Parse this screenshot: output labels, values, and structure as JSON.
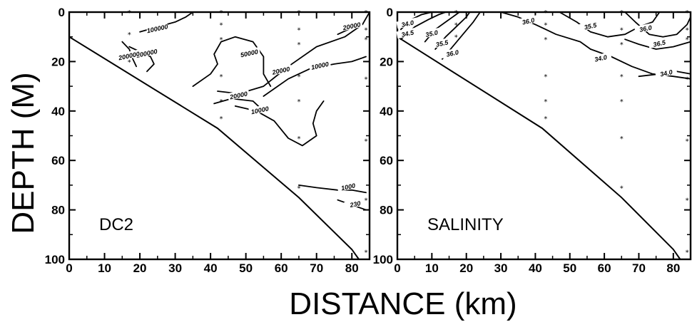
{
  "chart_data": [
    {
      "type": "contour",
      "panel_label": "DC2",
      "xlim": [
        0,
        85
      ],
      "ylim": [
        0,
        100
      ],
      "y_inverted": true,
      "x_ticks": [
        "0",
        "10",
        "20",
        "30",
        "40",
        "50",
        "60",
        "70",
        "80"
      ],
      "y_ticks": [
        "0",
        "20",
        "40",
        "60",
        "80",
        "100"
      ],
      "bottom_profile": [
        [
          0,
          10
        ],
        [
          42,
          47
        ],
        [
          65,
          75
        ],
        [
          80,
          96
        ],
        [
          82,
          100
        ]
      ],
      "stations": [
        {
          "x": 17,
          "depths": [
            0,
            9,
            20
          ]
        },
        {
          "x": 43,
          "depths": [
            0,
            5,
            11,
            26,
            36,
            43
          ]
        },
        {
          "x": 65,
          "depths": [
            0,
            7,
            13,
            26,
            36,
            51,
            71
          ]
        },
        {
          "x": 84,
          "depths": [
            0,
            7,
            11,
            27,
            52,
            76,
            97
          ]
        }
      ],
      "contours": [
        {
          "label": "100000",
          "label_at": [
            25,
            7
          ],
          "points": [
            [
              20,
              8
            ],
            [
              25,
              6
            ],
            [
              30,
              4
            ],
            [
              33,
              2
            ],
            [
              35,
              0
            ]
          ]
        },
        {
          "label": "100000",
          "label_at": [
            22,
            17
          ],
          "points": [
            [
              17,
              14
            ],
            [
              20,
              16
            ],
            [
              23,
              18
            ],
            [
              24,
              21
            ],
            [
              22,
              24
            ]
          ]
        },
        {
          "label": "200000",
          "label_at": [
            17,
            18
          ],
          "points": [
            [
              15,
              12
            ],
            [
              17,
              15
            ],
            [
              18,
              19
            ],
            [
              19,
              22
            ]
          ]
        },
        {
          "label": "50000",
          "label_at": [
            51,
            17
          ],
          "points": [
            [
              35,
              30
            ],
            [
              40,
              25
            ],
            [
              42,
              21
            ],
            [
              41,
              17
            ],
            [
              43,
              12
            ],
            [
              47,
              10
            ],
            [
              52,
              12
            ],
            [
              55,
              18
            ],
            [
              55,
              25
            ],
            [
              57,
              30
            ]
          ]
        },
        {
          "label": "20000",
          "label_at": [
            60,
            24
          ],
          "points": [
            [
              42,
              32
            ],
            [
              48,
              33
            ],
            [
              55,
              30
            ],
            [
              62,
              22
            ],
            [
              70,
              14
            ],
            [
              78,
              10
            ],
            [
              83,
              5
            ],
            [
              85,
              0
            ]
          ]
        },
        {
          "label": "20000",
          "label_at": [
            80,
            6
          ],
          "points": [
            [
              76,
              9
            ],
            [
              79,
              7
            ],
            [
              82,
              4
            ]
          ]
        },
        {
          "label": "10000",
          "label_at": [
            71,
            22
          ],
          "points": [
            [
              55,
              34
            ],
            [
              62,
              27
            ],
            [
              68,
              23
            ],
            [
              75,
              21
            ],
            [
              80,
              20
            ],
            [
              84,
              18
            ]
          ]
        },
        {
          "label": "20000",
          "label_at": [
            48,
            34
          ],
          "points": [
            [
              41,
              37
            ],
            [
              46,
              35
            ],
            [
              52,
              36
            ],
            [
              55,
              40
            ]
          ]
        },
        {
          "label": "10000",
          "label_at": [
            54,
            40
          ],
          "points": [
            [
              47,
              38
            ],
            [
              53,
              40
            ],
            [
              58,
              44
            ],
            [
              62,
              51
            ],
            [
              66,
              54
            ],
            [
              70,
              50
            ],
            [
              69,
              45
            ],
            [
              70,
              40
            ],
            [
              72,
              36
            ]
          ]
        },
        {
          "label": "1000",
          "label_at": [
            79,
            71
          ],
          "points": [
            [
              65,
              70
            ],
            [
              70,
              71
            ],
            [
              76,
              72
            ],
            [
              80,
              72
            ],
            [
              84,
              73
            ]
          ]
        },
        {
          "label": "230",
          "label_at": [
            81,
            78
          ],
          "points": [
            [
              76,
              76
            ],
            [
              80,
              78
            ],
            [
              84,
              80
            ]
          ]
        }
      ]
    },
    {
      "type": "contour",
      "panel_label": "SALINITY",
      "xlim": [
        0,
        85
      ],
      "ylim": [
        0,
        100
      ],
      "y_inverted": true,
      "x_ticks": [
        "0",
        "10",
        "20",
        "30",
        "40",
        "50",
        "60",
        "70",
        "80"
      ],
      "y_ticks": [
        "0",
        "20",
        "40",
        "60",
        "80",
        "100"
      ],
      "bottom_profile": [
        [
          0,
          10
        ],
        [
          42,
          47
        ],
        [
          65,
          75
        ],
        [
          80,
          96
        ],
        [
          82,
          100
        ]
      ],
      "stations": [
        {
          "x": 17,
          "depths": [
            0,
            5,
            10
          ]
        },
        {
          "x": 43,
          "depths": [
            0,
            5,
            11,
            26,
            36,
            43
          ]
        },
        {
          "x": 65,
          "depths": [
            0,
            7,
            13,
            26,
            36,
            51,
            71
          ]
        },
        {
          "x": 84,
          "depths": [
            0,
            7,
            11,
            27,
            52,
            76,
            97
          ]
        }
      ],
      "contours": [
        {
          "label": "34.0",
          "label_at": [
            3,
            5
          ],
          "points": [
            [
              1,
              7
            ],
            [
              4,
              3
            ],
            [
              7,
              1
            ],
            [
              10,
              0
            ]
          ]
        },
        {
          "label": "34.5",
          "label_at": [
            3,
            9
          ],
          "points": [
            [
              1,
              11
            ],
            [
              5,
              6
            ],
            [
              9,
              3
            ],
            [
              12,
              1
            ],
            [
              14,
              0
            ]
          ]
        },
        {
          "label": "35.0",
          "label_at": [
            10,
            9
          ],
          "points": [
            [
              8,
              12
            ],
            [
              11,
              7
            ],
            [
              14,
              4
            ],
            [
              17,
              1
            ],
            [
              18,
              0
            ]
          ]
        },
        {
          "label": "35.5",
          "label_at": [
            13,
            13
          ],
          "points": [
            [
              11,
              15
            ],
            [
              14,
              10
            ],
            [
              17,
              6
            ],
            [
              20,
              2
            ],
            [
              21,
              0
            ]
          ]
        },
        {
          "label": "36.0",
          "label_at": [
            16,
            17
          ],
          "points": [
            [
              13,
              19
            ],
            [
              16,
              14
            ],
            [
              19,
              9
            ],
            [
              22,
              4
            ],
            [
              24,
              0
            ]
          ]
        },
        {
          "label": "36.0",
          "label_at": [
            38,
            4
          ],
          "points": [
            [
              30,
              0
            ],
            [
              35,
              2
            ],
            [
              40,
              5
            ],
            [
              46,
              9
            ],
            [
              53,
              12
            ],
            [
              56,
              15
            ]
          ]
        },
        {
          "label": "34.0",
          "label_at": [
            59,
            19
          ],
          "points": [
            [
              56,
              15
            ],
            [
              62,
              18
            ],
            [
              68,
              22
            ],
            [
              74,
              25
            ],
            [
              80,
              26
            ],
            [
              85,
              27
            ]
          ]
        },
        {
          "label": "35.5",
          "label_at": [
            56,
            6
          ],
          "points": [
            [
              47,
              0
            ],
            [
              52,
              4
            ],
            [
              56,
              8
            ],
            [
              61,
              10
            ],
            [
              66,
              9
            ],
            [
              70,
              6
            ],
            [
              74,
              4
            ],
            [
              76,
              0
            ]
          ]
        },
        {
          "label": "36.0",
          "label_at": [
            72,
            7
          ],
          "points": [
            [
              66,
              0
            ],
            [
              69,
              4
            ],
            [
              73,
              9
            ],
            [
              77,
              10
            ],
            [
              81,
              9
            ],
            [
              84,
              5
            ],
            [
              85,
              2
            ]
          ]
        },
        {
          "label": "36.5",
          "label_at": [
            76,
            13
          ],
          "points": [
            [
              66,
              11
            ],
            [
              70,
              13
            ],
            [
              75,
              15
            ],
            [
              80,
              14
            ],
            [
              85,
              12
            ]
          ]
        },
        {
          "label": "34.0",
          "label_at": [
            78,
            25
          ],
          "points": [
            [
              70,
              26
            ],
            [
              76,
              25
            ],
            [
              81,
              24
            ],
            [
              85,
              25
            ]
          ]
        }
      ]
    }
  ],
  "xlabel": "DISTANCE  (km)",
  "ylabel": "DEPTH  (M)"
}
